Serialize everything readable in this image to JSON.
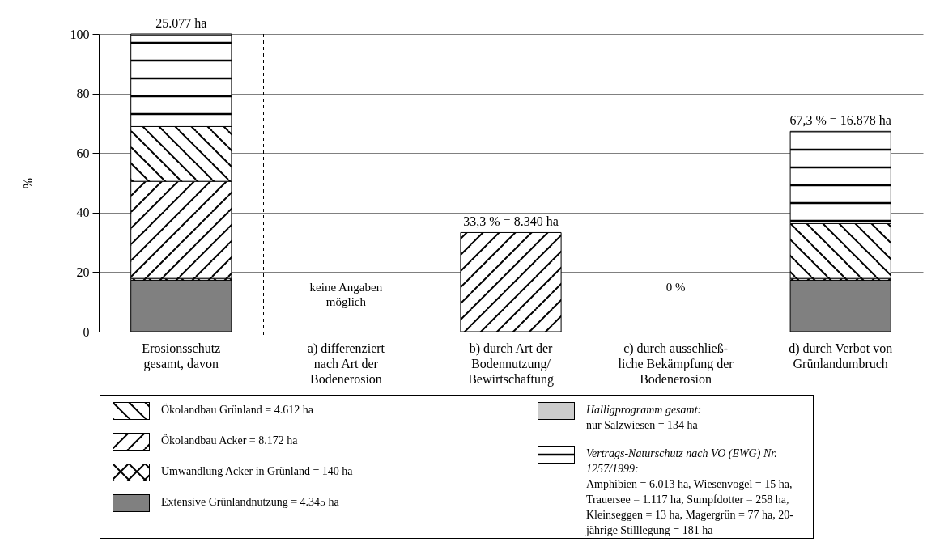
{
  "chart_data": {
    "type": "bar",
    "stacked": true,
    "ylabel": "%",
    "ylim": [
      0,
      100
    ],
    "yticks": [
      0,
      20,
      40,
      60,
      80,
      100
    ],
    "grid": "y",
    "legend": "bottom",
    "categories": [
      "Erosionsschutz gesamt, davon",
      "a) differenziert nach Art der Bodenerosion",
      "b) durch Art der Bodennutzung/ Bewirtschaftung",
      "c) durch ausschließ- liche Bekämpfung der Bodenerosion",
      "d) durch Verbot von Grünlandumbruch"
    ],
    "series": [
      {
        "name": "Extensive Grünlandnutzung = 4.345 ha",
        "color": "#808080",
        "values": [
          17.3,
          null,
          null,
          null,
          17.3
        ]
      },
      {
        "name": "Umwandlung Acker in Grünland = 140 ha",
        "color": "#000000",
        "values": [
          0.6,
          null,
          null,
          null,
          0.6
        ]
      },
      {
        "name": "Ökolandbau Acker = 8.172 ha",
        "color": "#000000",
        "values": [
          32.6,
          null,
          33.3,
          null,
          null
        ]
      },
      {
        "name": "Ökolandbau Grünland = 4.612 ha",
        "color": "#000000",
        "values": [
          18.4,
          null,
          null,
          null,
          18.4
        ]
      },
      {
        "name": "Vertrags-Naturschutz nach VO (EWG) Nr. 1257/1999: Amphibien = 6.013 ha, Wiesenvogel = 15 ha, Trauersee = 1.117 ha, Sumpfdotter = 258 ha, Kleinseggen = 13 ha, Magergrün = 77 ha, 20-jährige Stilllegung = 181 ha",
        "color": "#000000",
        "values": [
          30.6,
          null,
          null,
          null,
          30.5
        ]
      },
      {
        "name": "Halligprogramm gesamt: nur Salzwiesen = 134 ha",
        "color": "#cccccc",
        "values": [
          0.5,
          null,
          null,
          null,
          0.5
        ]
      }
    ],
    "annotations": [
      {
        "text": "25.077 ha",
        "x": "Erosionsschutz gesamt, davon",
        "y": 100
      },
      {
        "text": "33,3 % = 8.340 ha",
        "x": "b) durch Art der Bodennutzung/ Bewirtschaftung",
        "y": 33.3
      },
      {
        "text": "67,3 % = 16.878 ha",
        "x": "d) durch Verbot von Grünlandumbruch",
        "y": 67.3
      },
      "keine Angaben möglich",
      "0 %"
    ]
  }
}
